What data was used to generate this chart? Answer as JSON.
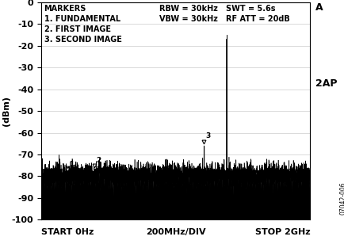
{
  "xlabel_left": "START 0Hz",
  "xlabel_center": "200MHz/DIV",
  "xlabel_right": "STOP 2GHz",
  "ylabel": "(dBm)",
  "ylim": [
    -100,
    0
  ],
  "xlim": [
    0,
    2000
  ],
  "yticks": [
    0,
    -10,
    -20,
    -30,
    -40,
    -50,
    -60,
    -70,
    -80,
    -90,
    -100
  ],
  "noise_floor": -80,
  "noise_std": 2.5,
  "marker1_x": 195,
  "marker1_y": -79,
  "marker2_x": 395,
  "marker2_y": -77,
  "marker3_x": 1210,
  "marker3_y": -66,
  "spike_x": 1380,
  "spike_y": -17,
  "annotation_markers": "MARKERS\n1. FUNDAMENTAL\n2. FIRST IMAGE\n3. SECOND IMAGE",
  "annotation_rbw1": "RBW = 30kHz",
  "annotation_swt": "SWT = 5.6s",
  "annotation_rbw2": "VBW = 30kHz",
  "annotation_rfa": "RF ATT = 20dB",
  "label_A": "A",
  "label_2AP": "2AP",
  "label_07042": "07042-006",
  "fontsize_annotation": 7,
  "fontsize_axis": 8,
  "fontsize_tick": 8,
  "grid_color": "#cccccc",
  "figsize": [
    4.35,
    3.08
  ],
  "dpi": 100
}
